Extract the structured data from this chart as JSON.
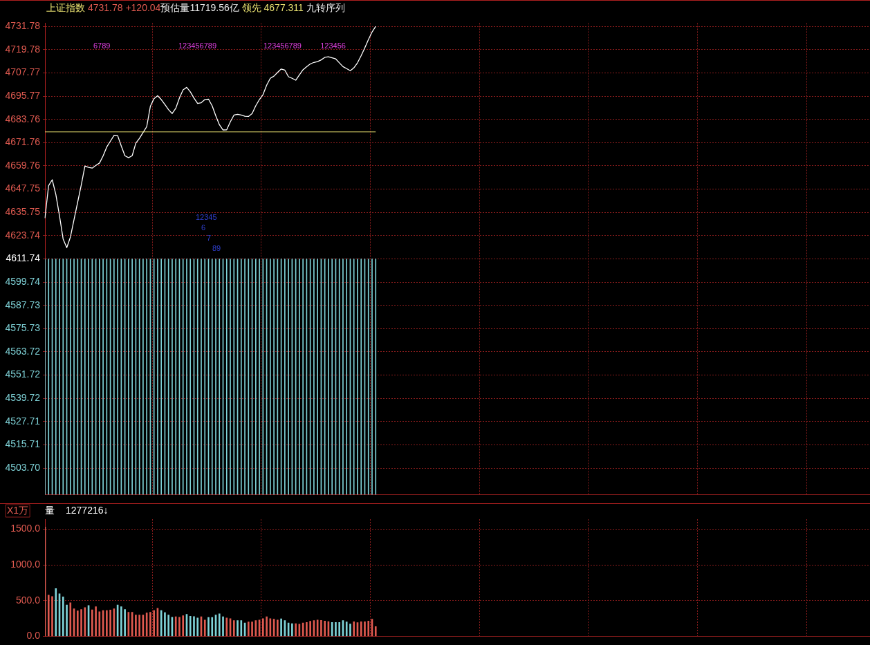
{
  "chart_data": [
    {
      "type": "line",
      "title": "上证指数",
      "subtitle": "4731.78 +120.04",
      "tick_labels": "y",
      "grid": true,
      "categories": [
        null,
        null,
        null,
        null,
        null,
        null,
        null,
        null,
        null,
        null,
        null,
        null,
        null,
        null,
        null,
        null,
        null,
        null,
        null,
        null,
        null,
        null,
        null,
        null,
        null,
        null,
        null,
        null,
        null,
        null,
        null,
        null,
        null,
        null,
        null,
        null,
        null,
        null,
        null,
        null,
        null,
        null,
        null,
        null,
        null,
        null,
        null,
        null,
        null,
        null,
        null,
        null,
        null,
        null,
        null,
        null,
        null,
        null,
        null,
        null,
        null,
        null,
        null,
        null,
        null,
        null,
        null,
        null,
        null,
        null,
        null,
        null,
        null,
        null,
        null,
        null,
        null,
        null,
        null,
        null,
        null,
        null,
        null,
        null,
        null,
        null,
        null,
        null,
        null,
        null,
        null,
        null,
        null,
        null,
        null,
        null,
        null,
        null,
        null,
        null,
        null,
        null,
        null,
        null,
        null,
        null,
        null,
        null,
        null,
        null,
        null,
        null,
        null,
        null,
        null,
        null,
        null,
        null,
        null,
        null,
        null,
        null,
        null,
        null,
        null,
        null,
        null,
        null,
        null,
        null,
        null,
        null,
        null,
        null,
        null,
        null,
        null,
        null,
        null,
        null,
        null,
        null,
        null,
        null,
        null,
        null,
        null,
        null,
        null,
        null,
        null,
        null,
        null,
        null,
        null,
        null,
        null,
        null,
        null,
        null,
        null,
        null,
        null,
        null,
        null,
        null,
        null,
        null,
        null,
        null,
        null,
        null,
        null,
        null,
        null,
        null,
        null,
        null,
        null,
        null,
        null,
        null,
        null,
        null,
        null,
        null,
        null,
        null,
        null,
        null,
        null,
        null,
        null,
        null,
        null,
        null,
        null,
        null,
        null,
        null,
        null,
        null,
        null,
        null,
        null,
        null,
        null,
        null,
        null,
        null,
        null,
        null,
        null,
        null,
        null,
        null,
        null,
        null,
        null,
        null,
        null,
        null,
        null,
        null,
        null,
        null,
        null,
        null
      ],
      "series": [
        {
          "type": "line",
          "color": "#ffffff",
          "values": [
            4632.8,
            4649.5,
            4652.6,
            4645,
            4634,
            4622,
            4617.5,
            4623,
            4632,
            4641,
            4650,
            4659.7,
            4659,
            4658.6,
            4660,
            4661.2,
            4664.9,
            4669.5,
            4672.5,
            4675.5,
            4675.4,
            4670,
            4665,
            4664,
            4665,
            4671.5,
            4674,
            4677,
            4680,
            4690.5,
            4694.5,
            4696,
            4694,
            4691.5,
            4688.8,
            4686.8,
            4689.5,
            4694.8,
            4699,
            4700.3,
            4698,
            4694.8,
            4692,
            4692.4,
            4694,
            4694.2,
            4690.8,
            4685.6,
            4681,
            4678.3,
            4678.4,
            4682.5,
            4686,
            4686.4,
            4686,
            4685.4,
            4685.3,
            4686.8,
            4690.8,
            4694,
            4696.6,
            4701.4,
            4705,
            4706.1,
            4708,
            4709.8,
            4709.2,
            4705.8,
            4705,
            4704,
            4706.7,
            4709.4,
            4711,
            4712.4,
            4713.2,
            4713.6,
            4714.5,
            4715.8,
            4716.1,
            4715.6,
            4715,
            4713,
            4711,
            4710,
            4708.9,
            4710.4,
            4713,
            4716.7,
            4720.7,
            4725,
            4728.9,
            4731.78,
            null,
            null,
            null,
            null,
            null,
            null,
            null,
            null,
            null,
            null,
            null,
            null,
            null,
            null,
            null,
            null,
            null,
            null,
            null,
            null,
            null,
            null,
            null,
            null,
            null,
            null,
            null,
            null,
            null,
            null,
            null,
            null,
            null,
            null,
            null,
            null,
            null,
            null,
            null,
            null,
            null,
            null,
            null,
            null,
            null,
            null,
            null,
            null,
            null,
            null,
            null,
            null,
            null,
            null,
            null,
            null,
            null,
            null,
            null,
            null,
            null,
            null,
            null,
            null,
            null,
            null,
            null,
            null,
            null,
            null,
            null,
            null,
            null,
            null,
            null,
            null,
            null,
            null,
            null,
            null,
            null,
            null,
            null,
            null,
            null,
            null,
            null,
            null,
            null,
            null,
            null,
            null,
            null,
            null,
            null,
            null,
            null,
            null,
            null,
            null,
            null,
            null,
            null,
            null,
            null,
            null,
            null,
            null,
            null,
            null,
            null,
            null,
            null,
            null,
            null,
            null,
            null,
            null,
            null,
            null,
            null,
            null,
            null,
            null,
            null,
            null,
            null,
            null,
            null,
            null,
            null,
            null,
            null,
            null,
            null,
            null
          ]
        },
        {
          "type": "bar",
          "color": "#7fd3d8",
          "values": [
            4611.74,
            4611.74,
            4611.74,
            4611.74,
            4611.74,
            4611.74,
            4611.74,
            4611.74,
            4611.74,
            4611.74,
            4611.74,
            4611.74,
            4611.74,
            4611.74,
            4611.74,
            4611.74,
            4611.74,
            4611.74,
            4611.74,
            4611.74,
            4611.74,
            4611.74,
            4611.74,
            4611.74,
            4611.74,
            4611.74,
            4611.74,
            4611.74,
            4611.74,
            4611.74,
            4611.74,
            4611.74,
            4611.74,
            4611.74,
            4611.74,
            4611.74,
            4611.74,
            4611.74,
            4611.74,
            4611.74,
            4611.74,
            4611.74,
            4611.74,
            4611.74,
            4611.74,
            4611.74,
            4611.74,
            4611.74,
            4611.74,
            4611.74,
            4611.74,
            4611.74,
            4611.74,
            4611.74,
            4611.74,
            4611.74,
            4611.74,
            4611.74,
            4611.74,
            4611.74,
            4611.74,
            4611.74,
            4611.74,
            4611.74,
            4611.74,
            4611.74,
            4611.74,
            4611.74,
            4611.74,
            4611.74,
            4611.74,
            4611.74,
            4611.74,
            4611.74,
            4611.74,
            4611.74,
            4611.74,
            4611.74,
            4611.74,
            4611.74,
            4611.74,
            4611.74,
            4611.74,
            4611.74,
            4611.74,
            4611.74,
            4611.74,
            4611.74,
            4611.74,
            4611.74,
            4611.74,
            4611.74,
            null,
            null,
            null,
            null,
            null,
            null,
            null,
            null,
            null,
            null,
            null,
            null,
            null,
            null,
            null,
            null,
            null,
            null,
            null,
            null,
            null,
            null,
            null,
            null,
            null,
            null,
            null,
            null,
            null,
            null,
            null,
            null,
            null,
            null,
            null,
            null,
            null,
            null,
            null,
            null,
            null,
            null,
            null,
            null,
            null,
            null,
            null,
            null,
            null,
            null,
            null,
            null,
            null,
            null,
            null,
            null,
            null,
            null,
            null,
            null,
            null,
            null,
            null,
            null,
            null,
            null,
            null,
            null,
            null,
            null,
            null,
            null,
            null,
            null,
            null,
            null,
            null,
            null,
            null,
            null,
            null,
            null,
            null,
            null,
            null,
            null,
            null,
            null,
            null,
            null,
            null,
            null,
            null,
            null,
            null,
            null,
            null,
            null,
            null,
            null,
            null,
            null,
            null,
            null,
            null,
            null,
            null,
            null,
            null,
            null,
            null,
            null,
            null,
            null,
            null,
            null,
            null,
            null,
            null,
            null,
            null,
            null,
            null,
            null,
            null,
            null,
            null,
            null,
            null,
            null,
            null,
            null,
            null,
            null,
            null,
            null
          ]
        }
      ],
      "ylim": [
        4489.95,
        4733.5
      ],
      "yticks": [
        4731.78,
        4719.78,
        4707.77,
        4695.77,
        4683.76,
        4671.76,
        4659.76,
        4647.75,
        4635.75,
        4623.74,
        4611.74,
        4599.74,
        4587.73,
        4575.73,
        4563.72,
        4551.72,
        4539.72,
        4527.71,
        4515.71,
        {
          "value": 4503.7,
          "label": "4503.70"
        }
      ],
      "ref_lines": [
        {
          "axis": "y",
          "value": 4677.311,
          "label": "领先 4677.311",
          "color": "#e8e070"
        }
      ],
      "annotations": [
        "预估量11719.56亿",
        "九转序列",
        "6789",
        "123456789",
        "123456789",
        "123456",
        "12345",
        "6",
        "7",
        "89"
      ]
    },
    {
      "type": "bar",
      "title": "量",
      "subtitle": "1277216↓",
      "ylabel": "X1万",
      "tick_labels": "y",
      "grid": true,
      "categories": [
        null,
        null,
        null,
        null,
        null,
        null,
        null,
        null,
        null,
        null,
        null,
        null,
        null,
        null,
        null,
        null,
        null,
        null,
        null,
        null,
        null,
        null,
        null,
        null,
        null,
        null,
        null,
        null,
        null,
        null,
        null,
        null,
        null,
        null,
        null,
        null,
        null,
        null,
        null,
        null,
        null,
        null,
        null,
        null,
        null,
        null,
        null,
        null,
        null,
        null,
        null,
        null,
        null,
        null,
        null,
        null,
        null,
        null,
        null,
        null,
        null,
        null,
        null,
        null,
        null,
        null,
        null,
        null,
        null,
        null,
        null,
        null,
        null,
        null,
        null,
        null,
        null,
        null,
        null,
        null,
        null,
        null,
        null,
        null,
        null,
        null,
        null,
        null,
        null,
        null,
        null,
        null,
        null,
        null,
        null,
        null,
        null,
        null,
        null,
        null,
        null,
        null,
        null,
        null,
        null,
        null,
        null,
        null,
        null,
        null,
        null,
        null,
        null,
        null,
        null,
        null,
        null,
        null,
        null,
        null,
        null,
        null,
        null,
        null,
        null,
        null,
        null,
        null,
        null,
        null,
        null,
        null,
        null,
        null,
        null,
        null,
        null,
        null,
        null,
        null,
        null,
        null,
        null,
        null,
        null,
        null,
        null,
        null,
        null,
        null,
        null,
        null,
        null,
        null,
        null,
        null,
        null,
        null,
        null,
        null,
        null,
        null,
        null,
        null,
        null,
        null,
        null,
        null,
        null,
        null,
        null,
        null,
        null,
        null,
        null,
        null,
        null,
        null,
        null,
        null,
        null,
        null,
        null,
        null,
        null,
        null,
        null,
        null,
        null,
        null,
        null,
        null,
        null,
        null,
        null,
        null,
        null,
        null,
        null,
        null,
        null,
        null,
        null,
        null,
        null,
        null,
        null,
        null,
        null,
        null,
        null,
        null,
        null,
        null,
        null,
        null,
        null,
        null,
        null,
        null,
        null,
        null,
        null,
        null,
        null,
        null,
        null,
        null
      ],
      "values": [
        1530,
        578,
        559,
        669,
        597,
        553,
        441,
        472,
        388,
        359,
        378,
        403,
        434,
        372,
        416,
        347,
        362,
        362,
        369,
        388,
        441,
        416,
        378,
        338,
        338,
        300,
        300,
        300,
        328,
        338,
        362,
        394,
        362,
        334,
        300,
        269,
        275,
        269,
        291,
        309,
        284,
        278,
        259,
        275,
        231,
        266,
        266,
        300,
        316,
        275,
        259,
        250,
        222,
        222,
        222,
        188,
        203,
        203,
        222,
        231,
        250,
        275,
        250,
        241,
        231,
        247,
        222,
        188,
        178,
        178,
        172,
        188,
        197,
        213,
        222,
        231,
        225,
        216,
        209,
        197,
        197,
        197,
        222,
        203,
        175,
        206,
        194,
        206,
        206,
        216,
        241,
        138,
        null,
        null,
        null,
        null,
        null,
        null,
        null,
        null,
        null,
        null,
        null,
        null,
        null,
        null,
        null,
        null,
        null,
        null,
        null,
        null,
        null,
        null,
        null,
        null,
        null,
        null,
        null,
        null,
        null,
        null,
        null,
        null,
        null,
        null,
        null,
        null,
        null,
        null,
        null,
        null,
        null,
        null,
        null,
        null,
        null,
        null,
        null,
        null,
        null,
        null,
        null,
        null,
        null,
        null,
        null,
        null,
        null,
        null,
        null,
        null,
        null,
        null,
        null,
        null,
        null,
        null,
        null,
        null,
        null,
        null,
        null,
        null,
        null,
        null,
        null,
        null,
        null,
        null,
        null,
        null,
        null,
        null,
        null,
        null,
        null,
        null,
        null,
        null,
        null,
        null,
        null,
        null,
        null,
        null,
        null,
        null,
        null,
        null,
        null,
        null,
        null,
        null,
        null,
        null,
        null,
        null,
        null,
        null,
        null,
        null,
        null,
        null,
        null,
        null,
        null,
        null,
        null,
        null,
        null,
        null,
        null,
        null,
        null,
        null,
        null,
        null,
        null,
        null,
        null,
        null,
        null,
        null,
        null,
        null,
        null,
        null
      ],
      "colors": [
        "#e05a50",
        "#e05a50",
        "#e05a50",
        "#7fd3d8",
        "#7fd3d8",
        "#7fd3d8",
        "#7fd3d8",
        "#e05a50",
        "#e05a50",
        "#e05a50",
        "#e05a50",
        "#e05a50",
        "#7fd3d8",
        "#e05a50",
        "#e05a50",
        "#e05a50",
        "#e05a50",
        "#e05a50",
        "#e05a50",
        "#e05a50",
        "#7fd3d8",
        "#7fd3d8",
        "#7fd3d8",
        "#e05a50",
        "#e05a50",
        "#e05a50",
        "#e05a50",
        "#e05a50",
        "#e05a50",
        "#e05a50",
        "#e05a50",
        "#e05a50",
        "#7fd3d8",
        "#7fd3d8",
        "#7fd3d8",
        "#7fd3d8",
        "#e05a50",
        "#e05a50",
        "#e05a50",
        "#7fd3d8",
        "#7fd3d8",
        "#7fd3d8",
        "#7fd3d8",
        "#e05a50",
        "#e05a50",
        "#7fd3d8",
        "#7fd3d8",
        "#7fd3d8",
        "#7fd3d8",
        "#7fd3d8",
        "#e05a50",
        "#e05a50",
        "#e05a50",
        "#7fd3d8",
        "#7fd3d8",
        "#7fd3d8",
        "#e05a50",
        "#e05a50",
        "#e05a50",
        "#e05a50",
        "#e05a50",
        "#e05a50",
        "#e05a50",
        "#e05a50",
        "#e05a50",
        "#7fd3d8",
        "#7fd3d8",
        "#7fd3d8",
        "#7fd3d8",
        "#e05a50",
        "#e05a50",
        "#e05a50",
        "#e05a50",
        "#e05a50",
        "#e05a50",
        "#e05a50",
        "#e05a50",
        "#e05a50",
        "#e05a50",
        "#7fd3d8",
        "#7fd3d8",
        "#7fd3d8",
        "#7fd3d8",
        "#7fd3d8",
        "#7fd3d8",
        "#e05a50",
        "#e05a50",
        "#e05a50",
        "#e05a50",
        "#e05a50",
        "#e05a50",
        "#e05a50",
        null,
        null,
        null,
        null,
        null,
        null,
        null,
        null,
        null,
        null,
        null,
        null,
        null,
        null,
        null,
        null,
        null,
        null,
        null,
        null,
        null,
        null,
        null,
        null,
        null,
        null,
        null,
        null,
        null,
        null,
        null,
        null,
        null,
        null,
        null,
        null,
        null,
        null,
        null,
        null,
        null,
        null,
        null,
        null,
        null,
        null,
        null,
        null,
        null,
        null,
        null,
        null,
        null,
        null,
        null,
        null,
        null,
        null,
        null,
        null,
        null,
        null,
        null,
        null,
        null,
        null,
        null,
        null,
        null,
        null,
        null,
        null,
        null,
        null,
        null,
        null,
        null,
        null,
        null,
        null,
        null,
        null,
        null,
        null,
        null,
        null,
        null,
        null,
        null,
        null,
        null,
        null,
        null,
        null,
        null,
        null,
        null,
        null,
        null,
        null,
        null,
        null,
        null,
        null,
        null,
        null,
        null,
        null,
        null,
        null,
        null,
        null,
        null,
        null,
        null,
        null,
        null,
        null,
        null,
        null,
        null,
        null,
        null,
        null,
        null,
        null,
        null,
        null,
        null,
        null,
        null,
        null,
        null,
        null,
        null,
        null
      ],
      "ylim": [
        0,
        1640
      ],
      "yticks": [
        {
          "value": 0,
          "label": "0.0"
        },
        {
          "value": 500,
          "label": "500.0"
        },
        {
          "value": 1000,
          "label": "1000.0"
        },
        {
          "value": 1500,
          "label": "1500.0"
        }
      ]
    }
  ]
}
